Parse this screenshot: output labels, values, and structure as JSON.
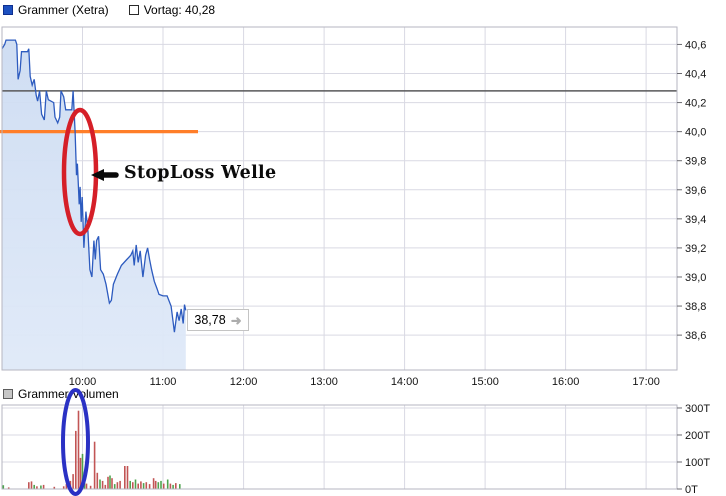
{
  "header": {
    "title": "Grammer (Xetra)",
    "vortag_label": "Vortag: 40,28",
    "vortag_value": 40.28,
    "series_marker_color": "#1d50c0"
  },
  "volume_header": {
    "title": "Grammer Volumen"
  },
  "annotations": {
    "stoploss_label": "StopLoss Welle",
    "last_price_label": "38,78",
    "last_price_value": 38.78,
    "orange_line_price": 40.0,
    "orange_line_color": "#ff7e29",
    "red_ellipse_color": "#d51f28",
    "red_ellipse_note": "circles the stop-loss sell-off wave around 10:00 on the price chart",
    "blue_ellipse_color": "#2a31c4",
    "blue_ellipse_note": "circles the volume spike around 10:00 on the volume chart"
  },
  "chart_data": [
    {
      "type": "area",
      "title": "Grammer (Xetra)",
      "prev_close": 40.28,
      "x_unit": "minutes since 09:00",
      "session_start": "09:00",
      "xlim": [
        0,
        503
      ],
      "ylim": [
        38.36,
        40.72
      ],
      "grid": true,
      "line_color": "#2d5bbf",
      "fill_color": "#d4e1f6",
      "prev_close_line_color": "#58585a",
      "x_ticks": [
        {
          "t": 60,
          "label": "10:00"
        },
        {
          "t": 120,
          "label": "11:00"
        },
        {
          "t": 180,
          "label": "12:00"
        },
        {
          "t": 240,
          "label": "13:00"
        },
        {
          "t": 300,
          "label": "14:00"
        },
        {
          "t": 360,
          "label": "15:00"
        },
        {
          "t": 420,
          "label": "16:00"
        },
        {
          "t": 480,
          "label": "17:00"
        }
      ],
      "y_ticks": [
        {
          "v": 40.6,
          "label": "40,6"
        },
        {
          "v": 40.4,
          "label": "40,4"
        },
        {
          "v": 40.2,
          "label": "40,2"
        },
        {
          "v": 40.0,
          "label": "40,0"
        },
        {
          "v": 39.8,
          "label": "39,8"
        },
        {
          "v": 39.6,
          "label": "39,6"
        },
        {
          "v": 39.4,
          "label": "39,4"
        },
        {
          "v": 39.2,
          "label": "39,2"
        },
        {
          "v": 39.0,
          "label": "39,0"
        },
        {
          "v": 38.8,
          "label": "38,8"
        },
        {
          "v": 38.6,
          "label": "38,6"
        }
      ],
      "points": [
        [
          0,
          40.57
        ],
        [
          2,
          40.6
        ],
        [
          3,
          40.63
        ],
        [
          10,
          40.63
        ],
        [
          11,
          40.6
        ],
        [
          12,
          40.36
        ],
        [
          13.5,
          40.42
        ],
        [
          14.5,
          40.55
        ],
        [
          19,
          40.55
        ],
        [
          20,
          40.57
        ],
        [
          21,
          40.38
        ],
        [
          22.5,
          40.32
        ],
        [
          24,
          40.36
        ],
        [
          25.5,
          40.25
        ],
        [
          26.5,
          40.21
        ],
        [
          28,
          40.28
        ],
        [
          29.5,
          40.12
        ],
        [
          31.5,
          40.08
        ],
        [
          33,
          40.28
        ],
        [
          34.5,
          40.22
        ],
        [
          38.5,
          40.2
        ],
        [
          39.5,
          40.1
        ],
        [
          41.5,
          40.06
        ],
        [
          43,
          40.1
        ],
        [
          44,
          40.28
        ],
        [
          46,
          40.24
        ],
        [
          47.5,
          40.15
        ],
        [
          52,
          40.15
        ],
        [
          53,
          40.28
        ],
        [
          54.5,
          40.0
        ],
        [
          55.5,
          39.7
        ],
        [
          56.2,
          39.78
        ],
        [
          57.5,
          39.5
        ],
        [
          58.2,
          39.62
        ],
        [
          59,
          39.38
        ],
        [
          59.8,
          39.55
        ],
        [
          61,
          39.2
        ],
        [
          62.5,
          39.45
        ],
        [
          64,
          39.32
        ],
        [
          65.5,
          39.05
        ],
        [
          67,
          39.0
        ],
        [
          68.5,
          39.25
        ],
        [
          69.5,
          39.12
        ],
        [
          70.5,
          39.25
        ],
        [
          72,
          39.28
        ],
        [
          73.5,
          39.05
        ],
        [
          75.5,
          39.02
        ],
        [
          77.5,
          38.95
        ],
        [
          80,
          38.82
        ],
        [
          81.5,
          38.84
        ],
        [
          83,
          38.95
        ],
        [
          86,
          39.02
        ],
        [
          89,
          39.08
        ],
        [
          93,
          39.12
        ],
        [
          96,
          39.15
        ],
        [
          97.5,
          39.18
        ],
        [
          98.5,
          39.08
        ],
        [
          100,
          39.22
        ],
        [
          101.5,
          39.1
        ],
        [
          103,
          39.18
        ],
        [
          105,
          39.0
        ],
        [
          107,
          39.15
        ],
        [
          108.5,
          39.2
        ],
        [
          110,
          39.12
        ],
        [
          111.5,
          39.05
        ],
        [
          113.5,
          38.97
        ],
        [
          115.5,
          38.92
        ],
        [
          117,
          38.88
        ],
        [
          120,
          38.87
        ],
        [
          123,
          38.87
        ],
        [
          126,
          38.8
        ],
        [
          128.5,
          38.62
        ],
        [
          130.5,
          38.76
        ],
        [
          132,
          38.7
        ],
        [
          133.5,
          38.78
        ],
        [
          135,
          38.68
        ],
        [
          136,
          38.81
        ],
        [
          137,
          38.77
        ]
      ]
    },
    {
      "type": "bar",
      "title": "Grammer Volumen",
      "x_unit": "minutes since 09:00",
      "value_unit": "T (thousand shares)",
      "xlim": [
        0,
        503
      ],
      "ylim": [
        0,
        311
      ],
      "grid": true,
      "up_color": "#4ea34e",
      "down_color": "#c25555",
      "y_ticks": [
        {
          "v": 300,
          "label": "300T"
        },
        {
          "v": 200,
          "label": "200T"
        },
        {
          "v": 100,
          "label": "100T"
        },
        {
          "v": 0,
          "label": "0T"
        }
      ],
      "bars": [
        [
          1,
          14,
          "up"
        ],
        [
          5,
          6,
          "down"
        ],
        [
          20,
          25,
          "down"
        ],
        [
          22,
          28,
          "down"
        ],
        [
          24,
          15,
          "up"
        ],
        [
          26,
          10,
          "down"
        ],
        [
          29,
          13,
          "up"
        ],
        [
          31,
          15,
          "down"
        ],
        [
          39,
          8,
          "down"
        ],
        [
          46,
          10,
          "down"
        ],
        [
          48,
          18,
          "down"
        ],
        [
          51,
          30,
          "down"
        ],
        [
          53,
          55,
          "down"
        ],
        [
          55,
          215,
          "down"
        ],
        [
          57,
          290,
          "down"
        ],
        [
          58.5,
          115,
          "down"
        ],
        [
          60,
          130,
          "up"
        ],
        [
          61.5,
          45,
          "up"
        ],
        [
          63,
          20,
          "down"
        ],
        [
          66,
          12,
          "down"
        ],
        [
          69,
          175,
          "down"
        ],
        [
          71,
          60,
          "down"
        ],
        [
          73,
          35,
          "up"
        ],
        [
          75,
          30,
          "down"
        ],
        [
          77,
          15,
          "down"
        ],
        [
          79,
          45,
          "down"
        ],
        [
          80.5,
          50,
          "up"
        ],
        [
          82,
          40,
          "down"
        ],
        [
          84,
          18,
          "up"
        ],
        [
          86,
          25,
          "down"
        ],
        [
          88,
          30,
          "down"
        ],
        [
          91.5,
          85,
          "down"
        ],
        [
          93.5,
          85,
          "down"
        ],
        [
          95.5,
          30,
          "up"
        ],
        [
          97.5,
          25,
          "down"
        ],
        [
          99.5,
          35,
          "up"
        ],
        [
          101.5,
          20,
          "down"
        ],
        [
          103.5,
          28,
          "down"
        ],
        [
          105.5,
          22,
          "up"
        ],
        [
          107.5,
          25,
          "down"
        ],
        [
          110,
          18,
          "down"
        ],
        [
          113,
          40,
          "down"
        ],
        [
          114.5,
          30,
          "down"
        ],
        [
          116.5,
          25,
          "up"
        ],
        [
          118.5,
          30,
          "up"
        ],
        [
          120.5,
          20,
          "down"
        ],
        [
          123.5,
          35,
          "up"
        ],
        [
          125.5,
          20,
          "down"
        ],
        [
          127.5,
          15,
          "up"
        ],
        [
          129.5,
          22,
          "down"
        ],
        [
          132.5,
          18,
          "up"
        ]
      ]
    }
  ]
}
